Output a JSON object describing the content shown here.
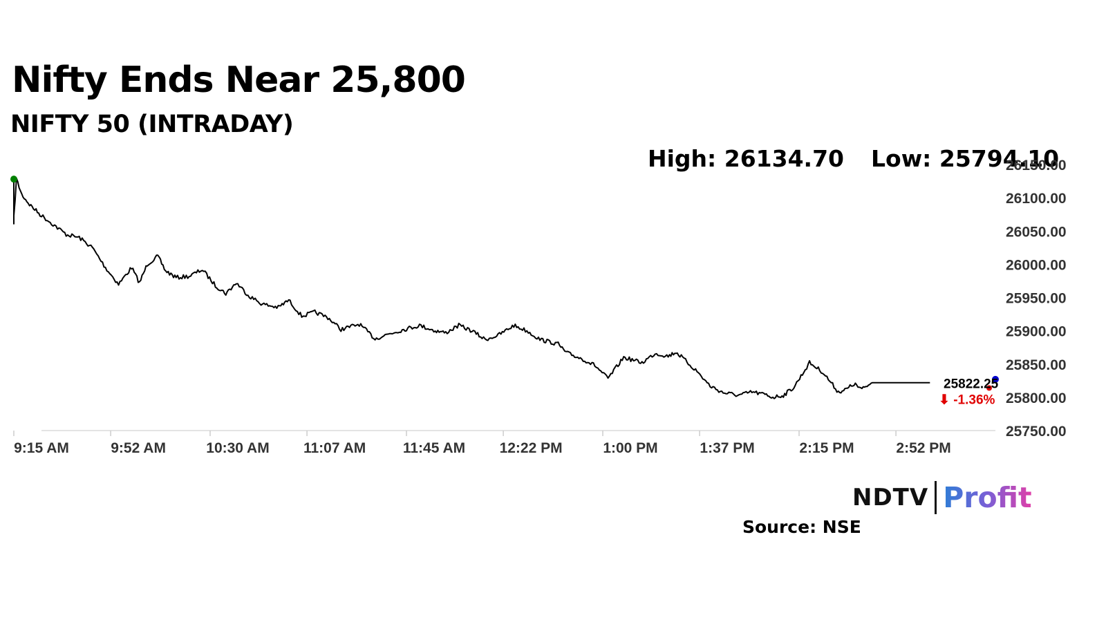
{
  "title": "Nifty Ends Near 25,800",
  "subtitle": "NIFTY 50 (INTRADAY)",
  "stats": {
    "high": "High: 26134.70",
    "low": "Low: 25794.10"
  },
  "source": "Source: NSE",
  "brand": {
    "part1": "NDTV",
    "part2": "Profit"
  },
  "colors": {
    "line": "#000000",
    "open_marker": "#008000",
    "close_marker": "#0000cc",
    "last_marker": "#e00000",
    "change": "#e00000",
    "axis_text": "#333333"
  },
  "chart_data": {
    "type": "line",
    "title": "NIFTY 50 (INTRADAY)",
    "x_tick_labels": [
      "9:15 AM",
      "9:52 AM",
      "10:30 AM",
      "11:07 AM",
      "11:45 AM",
      "12:22 PM",
      "1:00 PM",
      "1:37 PM",
      "2:15 PM",
      "2:52 PM"
    ],
    "y_ticks": [
      25750,
      25800,
      25850,
      25900,
      25950,
      26000,
      26050,
      26100,
      26150
    ],
    "y_tick_labels": [
      "25750.00",
      "25800.00",
      "25850.00",
      "25900.00",
      "25950.00",
      "26000.00",
      "26050.00",
      "26100.00",
      "26150.00"
    ],
    "ylim": [
      25750,
      26150
    ],
    "x_range": [
      "9:15 AM",
      "3:30 PM"
    ],
    "grid": false,
    "high": 26134.7,
    "low": 25794.1,
    "last_value_label": "25822.25",
    "change_label": "⬇ -1.36%",
    "series": [
      {
        "x": [
          "9:15 AM",
          "9:16 AM",
          "9:18 AM",
          "9:21 AM",
          "9:25 AM",
          "9:30 AM",
          "9:35 AM",
          "9:40 AM",
          "9:45 AM",
          "9:50 AM",
          "9:55 AM",
          "10:00 AM",
          "10:03 AM",
          "10:06 AM",
          "10:10 AM",
          "10:13 AM",
          "10:17 AM",
          "10:22 AM",
          "10:27 AM",
          "10:32 AM",
          "10:36 AM",
          "10:40 AM",
          "10:45 AM",
          "10:50 AM",
          "10:56 AM",
          "11:00 AM",
          "11:05 AM",
          "11:10 AM",
          "11:15 AM",
          "11:20 AM",
          "11:27 AM",
          "11:33 AM",
          "11:38 AM",
          "11:45 AM",
          "11:50 AM",
          "11:56 AM",
          "12:00 PM",
          "12:05 PM",
          "12:10 PM",
          "12:15 PM",
          "12:20 PM",
          "12:26 PM",
          "12:31 PM",
          "12:36 PM",
          "12:43 PM",
          "12:46 PM",
          "12:52 PM",
          "12:57 PM",
          "1:02 PM",
          "1:08 PM",
          "1:15 PM",
          "1:20 PM",
          "1:25 PM",
          "1:28 PM",
          "1:30 PM",
          "1:36 PM",
          "1:41 PM",
          "1:46 PM",
          "1:52 PM",
          "1:57 PM",
          "2:02 PM",
          "2:05 PM",
          "2:09 PM",
          "2:13 PM",
          "2:19 PM",
          "2:24 PM",
          "2:30 PM",
          "2:33 PM",
          "2:36 PM",
          "2:39 PM",
          "2:43 PM",
          "2:48 PM",
          "2:52 PM",
          "2:55 PM",
          "2:58 PM",
          "3:00 PM",
          "3:02 PM",
          "3:04 PM",
          "3:05 PM"
        ],
        "values": [
          26070,
          26128,
          26105,
          26090,
          26075,
          26060,
          26045,
          26040,
          26025,
          25995,
          25970,
          25995,
          25972,
          26000,
          26012,
          25990,
          25980,
          25982,
          25992,
          25968,
          25956,
          25972,
          25952,
          25940,
          25935,
          25946,
          25922,
          25928,
          25920,
          25902,
          25910,
          25888,
          25895,
          25903,
          25908,
          25900,
          25897,
          25908,
          25900,
          25887,
          25893,
          25908,
          25900,
          25887,
          25880,
          25867,
          25858,
          25848,
          25828,
          25860,
          25852,
          25866,
          25862,
          25868,
          25861,
          25839,
          25817,
          25807,
          25803,
          25808,
          25804,
          25800,
          25803,
          25815,
          25852,
          25838,
          25808,
          25812,
          25820,
          25812,
          25822,
          25822,
          25822,
          25822,
          25822,
          25822,
          25822,
          25822,
          25822
        ]
      }
    ]
  }
}
